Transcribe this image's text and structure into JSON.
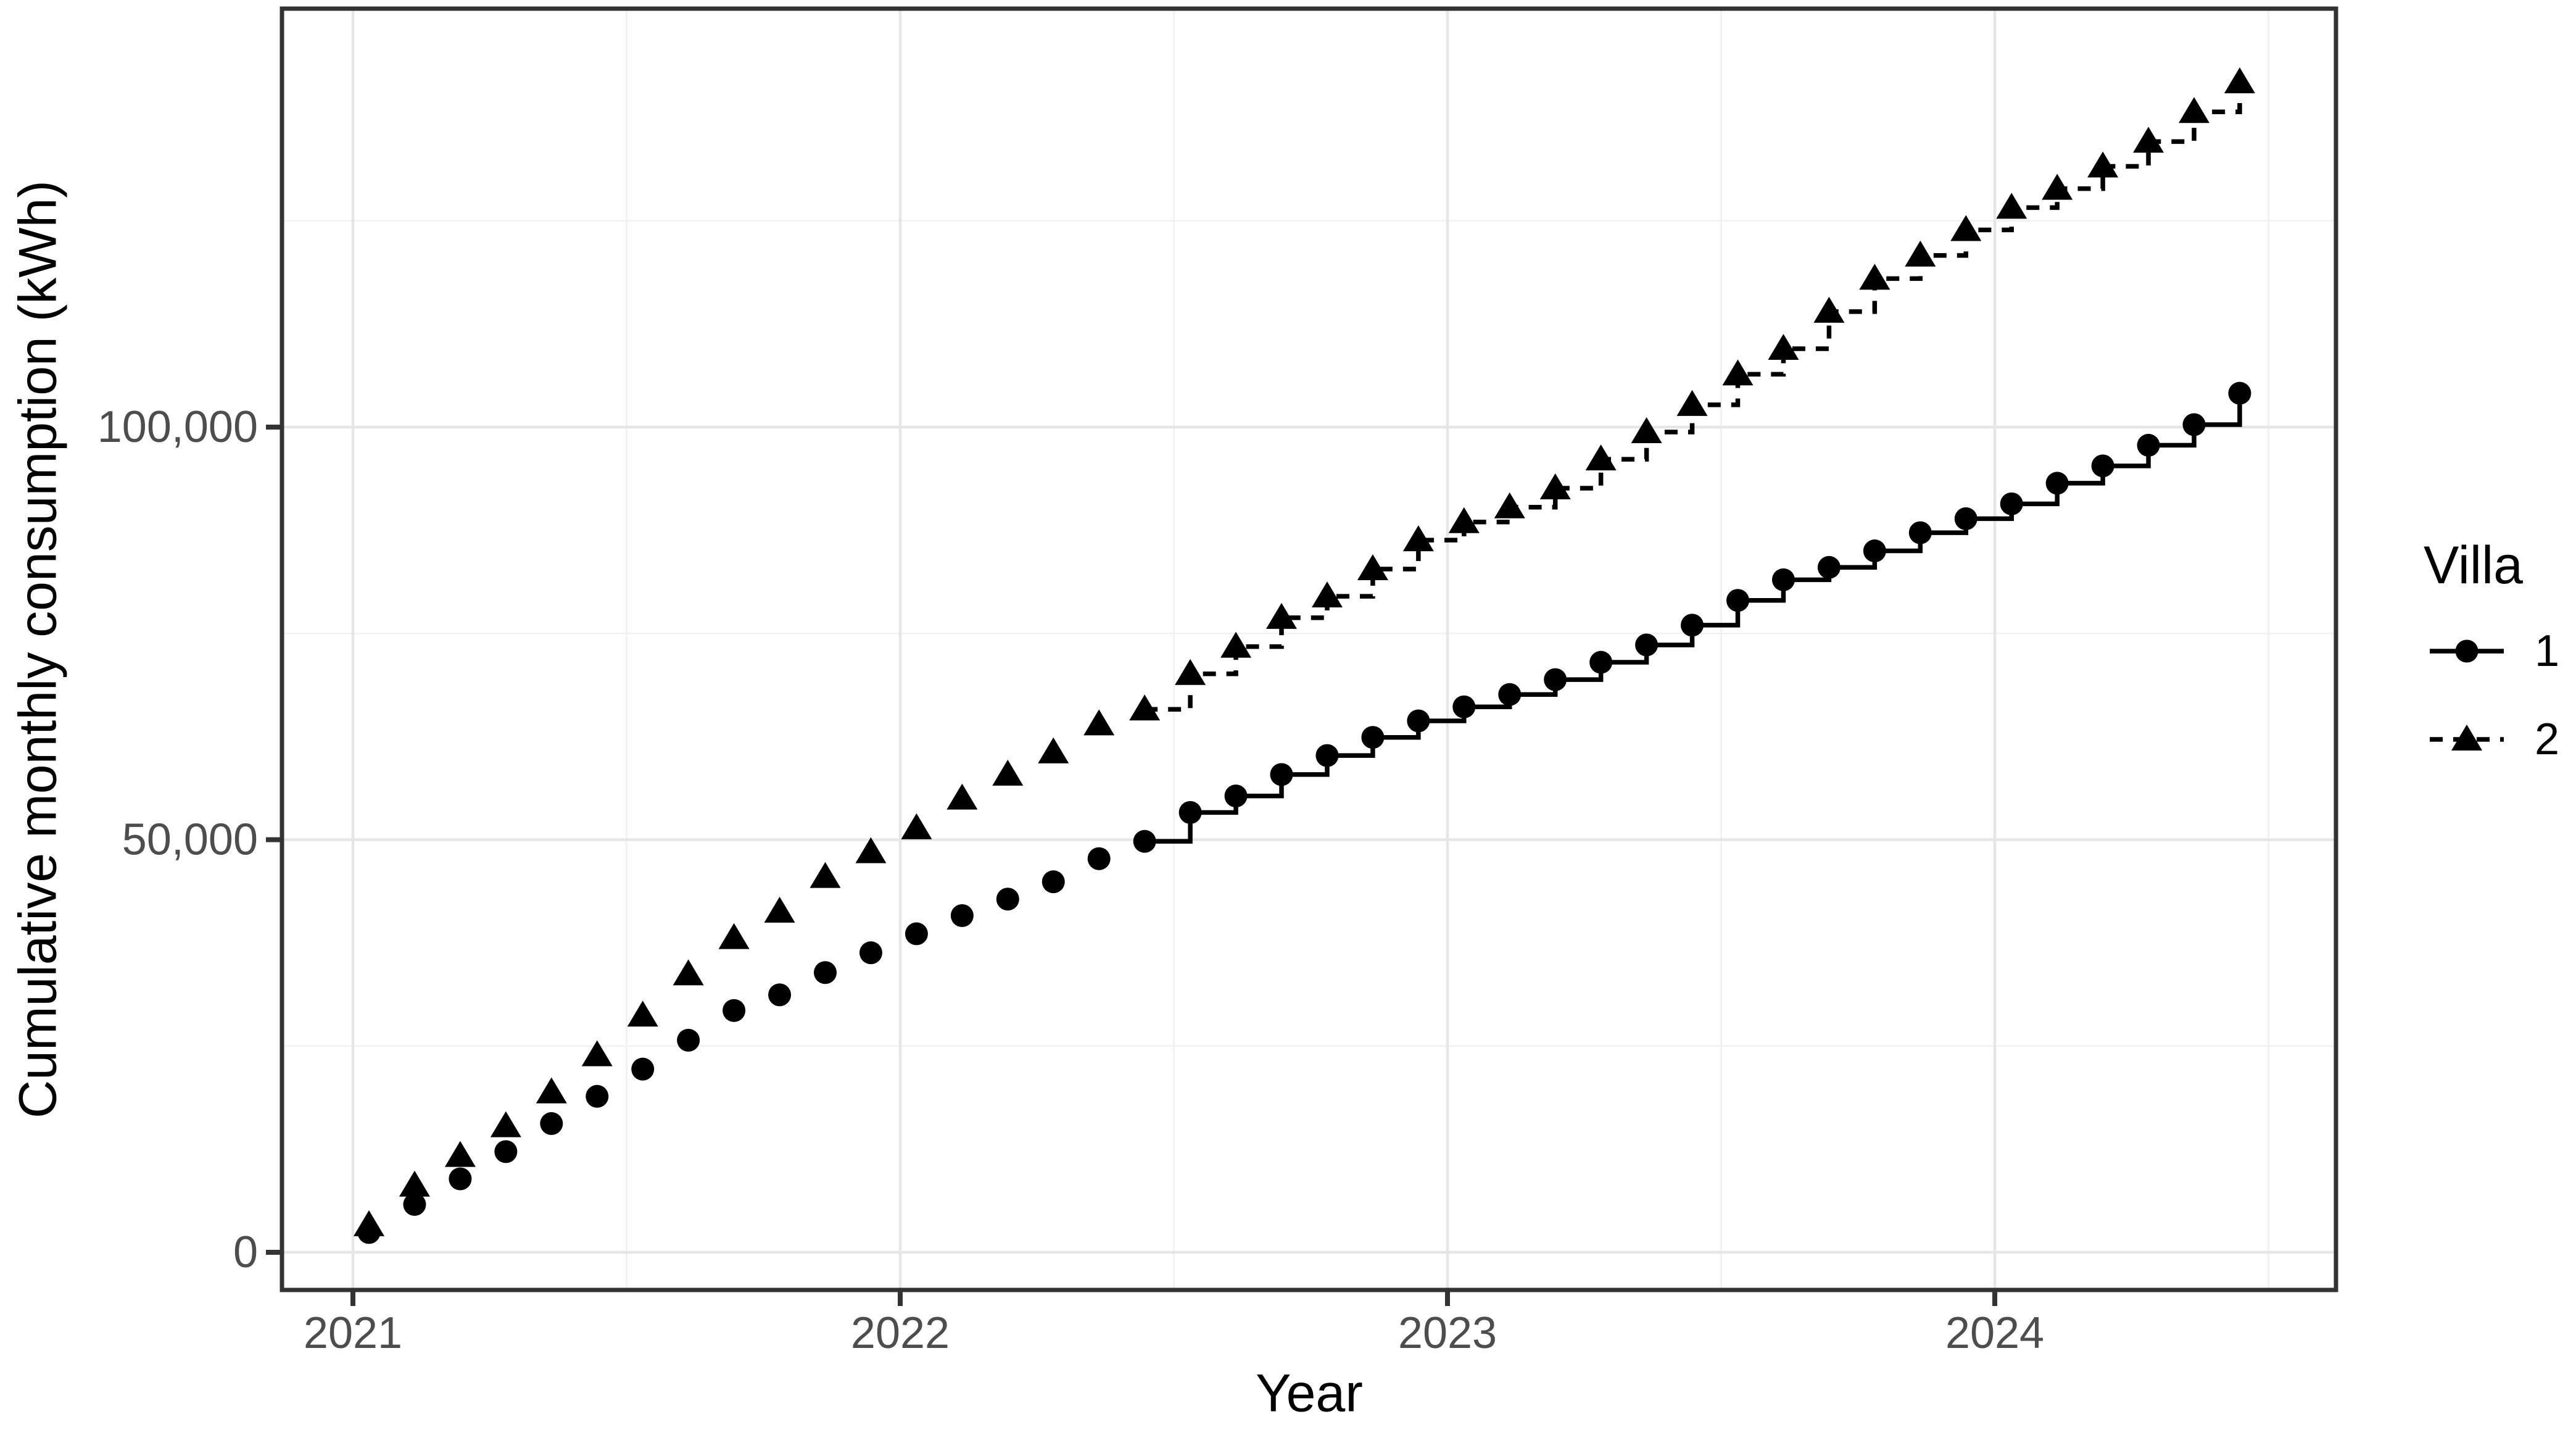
{
  "chart_data": {
    "type": "line",
    "subtype": "step-with-points",
    "title": "",
    "xlabel": "Year",
    "ylabel": "Cumulative monthly consumption (kWh)",
    "x_tick_labels": [
      "2021",
      "2022",
      "2023",
      "2024"
    ],
    "x_tick_years": [
      2021,
      2022,
      2023,
      2024
    ],
    "y_tick_labels": [
      "0",
      "50,000",
      "100,000"
    ],
    "y_ticks": [
      0,
      50000,
      100000
    ],
    "y_minor_ticks": [
      25000,
      75000,
      125000
    ],
    "x_minor_month_index": [
      6,
      18,
      30,
      42
    ],
    "ylim": [
      -4600,
      148800
    ],
    "grid": "on",
    "legend_position": "right",
    "months": [
      "2021-01",
      "2021-02",
      "2021-03",
      "2021-04",
      "2021-05",
      "2021-06",
      "2021-07",
      "2021-08",
      "2021-09",
      "2021-10",
      "2021-11",
      "2021-12",
      "2022-01",
      "2022-02",
      "2022-03",
      "2022-04",
      "2022-05",
      "2022-06",
      "2022-07",
      "2022-08",
      "2022-09",
      "2022-10",
      "2022-11",
      "2022-12",
      "2023-01",
      "2023-02",
      "2023-03",
      "2023-04",
      "2023-05",
      "2023-06",
      "2023-07",
      "2023-08",
      "2023-09",
      "2023-10",
      "2023-11",
      "2023-12",
      "2024-01",
      "2024-02",
      "2024-03",
      "2024-04",
      "2024-05",
      "2024-06"
    ],
    "line_start_month": "2022-06",
    "line_start_index": 17,
    "series": [
      {
        "name": "1",
        "marker": "circle",
        "line_style": "solid",
        "values": [
          2400,
          5800,
          8900,
          12200,
          15600,
          18900,
          22200,
          25700,
          29300,
          31200,
          33900,
          36300,
          38600,
          40800,
          42800,
          44900,
          47700,
          49800,
          53300,
          55300,
          57900,
          60200,
          62400,
          64400,
          66100,
          67600,
          69400,
          71500,
          73600,
          76000,
          79000,
          81500,
          83000,
          85000,
          87200,
          88900,
          90700,
          93200,
          95300,
          97800,
          100300,
          104100
        ]
      },
      {
        "name": "2",
        "marker": "triangle",
        "line_style": "dashed",
        "values": [
          3300,
          8100,
          11700,
          15300,
          19400,
          23900,
          28700,
          33700,
          38100,
          41300,
          45500,
          48500,
          51400,
          55000,
          57900,
          60600,
          64000,
          65800,
          70100,
          73400,
          76900,
          79500,
          82800,
          86300,
          88500,
          90300,
          92600,
          96100,
          99400,
          102700,
          106400,
          109500,
          114000,
          118000,
          120800,
          123900,
          126600,
          128900,
          131600,
          134600,
          138200,
          141800
        ]
      }
    ],
    "legend": {
      "title": "Villa",
      "items": [
        {
          "label": "1",
          "marker": "circle",
          "line_style": "solid"
        },
        {
          "label": "2",
          "marker": "triangle",
          "line_style": "dashed"
        }
      ]
    },
    "colors": {
      "series": "#000000",
      "tick_label": "#4d4d4d",
      "axis_title": "#000000",
      "panel_border": "#333333",
      "grid_major": "#e6e6e6",
      "grid_minor": "#f2f2f2",
      "background": "#ffffff"
    }
  }
}
